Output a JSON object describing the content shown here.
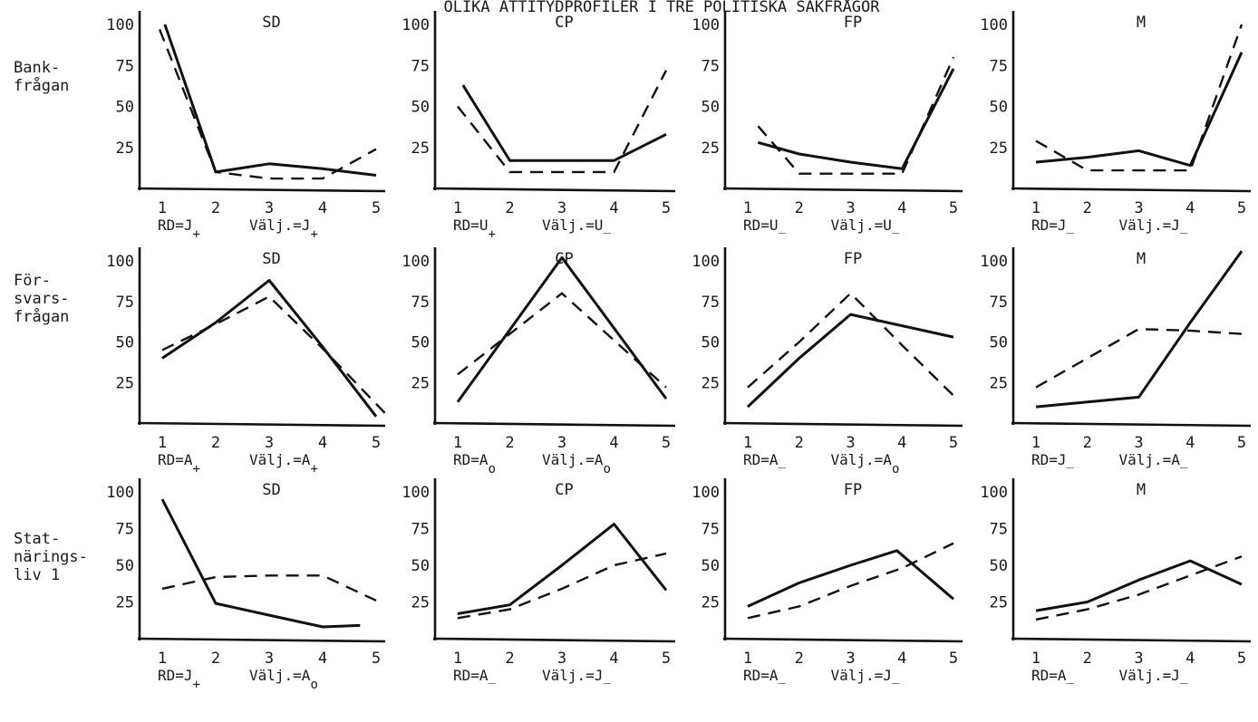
{
  "header_title": "OLIKA ATTITYDPROFILER I TRE POLITISKA SAKFRÅGOR",
  "row_labels": [
    [
      "Bank-",
      "frågan"
    ],
    [
      "För-",
      "svars-",
      "frågan"
    ],
    [
      "Stat-",
      "närings-",
      "liv 1"
    ]
  ],
  "chart_data": [
    {
      "type": "line",
      "title": "SD",
      "row": 0,
      "col": 0,
      "x": [
        1,
        2,
        3,
        4,
        5
      ],
      "yticks": [
        25,
        50,
        75,
        100
      ],
      "series": [
        {
          "style": "solid",
          "values": [
            [
              1.05,
              100
            ],
            [
              2,
              10
            ],
            [
              3,
              15
            ],
            [
              4,
              12
            ],
            [
              5,
              8
            ]
          ]
        },
        {
          "style": "dashed",
          "values": [
            [
              0.95,
              97
            ],
            [
              2,
              10
            ],
            [
              3,
              6
            ],
            [
              4,
              6
            ],
            [
              5,
              24
            ]
          ]
        }
      ],
      "footer": {
        "rd": "RD=J",
        "rd_sub": "+",
        "valj": "Välj.=J",
        "valj_sub": "+"
      }
    },
    {
      "type": "line",
      "title": "CP",
      "row": 0,
      "col": 1,
      "x": [
        1,
        2,
        3,
        4,
        5
      ],
      "yticks": [
        25,
        50,
        75,
        100
      ],
      "series": [
        {
          "style": "solid",
          "values": [
            [
              1.1,
              63
            ],
            [
              2,
              17
            ],
            [
              3,
              17
            ],
            [
              4,
              17
            ],
            [
              5,
              33
            ]
          ]
        },
        {
          "style": "dashed",
          "values": [
            [
              1,
              50
            ],
            [
              2,
              10
            ],
            [
              3,
              10
            ],
            [
              4,
              10
            ],
            [
              5,
              72
            ]
          ]
        }
      ],
      "footer": {
        "rd": "RD=U",
        "rd_sub": "+",
        "valj": "Välj.=U",
        "valj_sub": "_"
      }
    },
    {
      "type": "line",
      "title": "FP",
      "row": 0,
      "col": 2,
      "x": [
        1,
        2,
        3,
        4,
        5
      ],
      "yticks": [
        25,
        50,
        75,
        100
      ],
      "series": [
        {
          "style": "solid",
          "values": [
            [
              1.2,
              28
            ],
            [
              2,
              21
            ],
            [
              3,
              16
            ],
            [
              4,
              12
            ],
            [
              5,
              73
            ]
          ]
        },
        {
          "style": "dashed",
          "values": [
            [
              1.2,
              38
            ],
            [
              2,
              9
            ],
            [
              3,
              9
            ],
            [
              4,
              9
            ],
            [
              5,
              80
            ]
          ]
        }
      ],
      "footer": {
        "rd": "RD=U",
        "rd_sub": "_",
        "valj": "Välj.=U",
        "valj_sub": "_"
      }
    },
    {
      "type": "line",
      "title": "M",
      "row": 0,
      "col": 3,
      "x": [
        1,
        2,
        3,
        4,
        5
      ],
      "yticks": [
        25,
        50,
        75,
        100
      ],
      "series": [
        {
          "style": "solid",
          "values": [
            [
              1,
              16
            ],
            [
              2,
              19
            ],
            [
              3,
              23
            ],
            [
              4,
              14
            ],
            [
              5,
              83
            ]
          ]
        },
        {
          "style": "dashed",
          "values": [
            [
              1,
              29
            ],
            [
              2,
              11
            ],
            [
              3,
              11
            ],
            [
              4,
              11
            ],
            [
              5,
              100
            ]
          ]
        }
      ],
      "footer": {
        "rd": "RD=J",
        "rd_sub": "_",
        "valj": "Välj.=J",
        "valj_sub": "_"
      }
    },
    {
      "type": "line",
      "title": "SD",
      "row": 1,
      "col": 0,
      "x": [
        1,
        2,
        3,
        4,
        5
      ],
      "yticks": [
        25,
        50,
        75,
        100
      ],
      "series": [
        {
          "style": "solid",
          "values": [
            [
              1,
              40
            ],
            [
              2,
              62
            ],
            [
              3,
              88
            ],
            [
              4,
              47
            ],
            [
              5,
              4
            ]
          ]
        },
        {
          "style": "dashed",
          "values": [
            [
              1,
              45
            ],
            [
              2,
              61
            ],
            [
              3,
              78
            ],
            [
              4,
              46
            ],
            [
              5.2,
              5
            ]
          ]
        }
      ],
      "footer": {
        "rd": "RD=A",
        "rd_sub": "+",
        "valj": "Välj.=A",
        "valj_sub": "+"
      }
    },
    {
      "type": "line",
      "title": "CP",
      "row": 1,
      "col": 1,
      "x": [
        1,
        2,
        3,
        4,
        5
      ],
      "yticks": [
        25,
        50,
        75,
        100
      ],
      "series": [
        {
          "style": "solid",
          "values": [
            [
              1,
              13
            ],
            [
              3,
              102
            ],
            [
              5,
              15
            ]
          ]
        },
        {
          "style": "dashed",
          "values": [
            [
              1,
              30
            ],
            [
              3,
              80
            ],
            [
              5,
              22
            ]
          ]
        }
      ],
      "footer": {
        "rd": "RD=A",
        "rd_sub": "o",
        "valj": "Välj.=A",
        "valj_sub": "o"
      }
    },
    {
      "type": "line",
      "title": "FP",
      "row": 1,
      "col": 2,
      "x": [
        1,
        2,
        3,
        4,
        5
      ],
      "yticks": [
        25,
        50,
        75,
        100
      ],
      "series": [
        {
          "style": "solid",
          "values": [
            [
              1,
              10
            ],
            [
              2,
              40
            ],
            [
              3,
              67
            ],
            [
              4,
              60
            ],
            [
              5,
              53
            ]
          ]
        },
        {
          "style": "dashed",
          "values": [
            [
              1,
              22
            ],
            [
              2,
              50
            ],
            [
              3,
              80
            ],
            [
              4,
              48
            ],
            [
              5,
              17
            ]
          ]
        }
      ],
      "footer": {
        "rd": "RD=A",
        "rd_sub": "_",
        "valj": "Välj.=A",
        "valj_sub": "o"
      }
    },
    {
      "type": "line",
      "title": "M",
      "row": 1,
      "col": 3,
      "x": [
        1,
        2,
        3,
        4,
        5
      ],
      "yticks": [
        25,
        50,
        75,
        100
      ],
      "series": [
        {
          "style": "solid",
          "values": [
            [
              1,
              10
            ],
            [
              2,
              13
            ],
            [
              3,
              16
            ],
            [
              4,
              62
            ],
            [
              5,
              106
            ]
          ]
        },
        {
          "style": "dashed",
          "values": [
            [
              1,
              22
            ],
            [
              2,
              40
            ],
            [
              3,
              58
            ],
            [
              4,
              57
            ],
            [
              5,
              55
            ]
          ]
        }
      ],
      "footer": {
        "rd": "RD=J",
        "rd_sub": "_",
        "valj": "Välj.=A",
        "valj_sub": "_"
      }
    },
    {
      "type": "line",
      "title": "SD",
      "row": 2,
      "col": 0,
      "x": [
        1,
        2,
        3,
        4,
        5
      ],
      "yticks": [
        25,
        50,
        75,
        100
      ],
      "series": [
        {
          "style": "solid",
          "values": [
            [
              1,
              95
            ],
            [
              2,
              24
            ],
            [
              3,
              16
            ],
            [
              4,
              8
            ],
            [
              4.7,
              9
            ]
          ]
        },
        {
          "style": "dashed",
          "values": [
            [
              1,
              34
            ],
            [
              2,
              42
            ],
            [
              3,
              43
            ],
            [
              4,
              43
            ],
            [
              5,
              26
            ]
          ]
        }
      ],
      "footer": {
        "rd": "RD=J",
        "rd_sub": "+",
        "valj": "Välj.=A",
        "valj_sub": "o"
      }
    },
    {
      "type": "line",
      "title": "CP",
      "row": 2,
      "col": 1,
      "x": [
        1,
        2,
        3,
        4,
        5
      ],
      "yticks": [
        25,
        50,
        75,
        100
      ],
      "series": [
        {
          "style": "solid",
          "values": [
            [
              1,
              17
            ],
            [
              2,
              23
            ],
            [
              3,
              50
            ],
            [
              4,
              78
            ],
            [
              5,
              33
            ]
          ]
        },
        {
          "style": "dashed",
          "values": [
            [
              1,
              14
            ],
            [
              2,
              20
            ],
            [
              3,
              34
            ],
            [
              4,
              50
            ],
            [
              5,
              58
            ]
          ]
        }
      ],
      "footer": {
        "rd": "RD=A",
        "rd_sub": "_",
        "valj": "Välj.=J",
        "valj_sub": "_"
      }
    },
    {
      "type": "line",
      "title": "FP",
      "row": 2,
      "col": 2,
      "x": [
        1,
        2,
        3,
        4,
        5
      ],
      "yticks": [
        25,
        50,
        75,
        100
      ],
      "series": [
        {
          "style": "solid",
          "values": [
            [
              1,
              22
            ],
            [
              2,
              38
            ],
            [
              3,
              50
            ],
            [
              3.9,
              60
            ],
            [
              5,
              27
            ]
          ]
        },
        {
          "style": "dashed",
          "values": [
            [
              1,
              14
            ],
            [
              2,
              22
            ],
            [
              3,
              36
            ],
            [
              4,
              48
            ],
            [
              5,
              65
            ]
          ]
        }
      ],
      "footer": {
        "rd": "RD=A",
        "rd_sub": "_",
        "valj": "Välj.=J",
        "valj_sub": "_"
      }
    },
    {
      "type": "line",
      "title": "M",
      "row": 2,
      "col": 3,
      "x": [
        1,
        2,
        3,
        4,
        5
      ],
      "yticks": [
        25,
        50,
        75,
        100
      ],
      "series": [
        {
          "style": "solid",
          "values": [
            [
              1,
              19
            ],
            [
              2,
              25
            ],
            [
              3,
              40
            ],
            [
              4,
              53
            ],
            [
              5,
              37
            ]
          ]
        },
        {
          "style": "dashed",
          "values": [
            [
              1,
              13
            ],
            [
              2,
              20
            ],
            [
              3,
              30
            ],
            [
              4,
              43
            ],
            [
              5,
              56
            ]
          ]
        }
      ],
      "footer": {
        "rd": "RD=A",
        "rd_sub": "_",
        "valj": "Välj.=J",
        "valj_sub": "_"
      }
    }
  ]
}
